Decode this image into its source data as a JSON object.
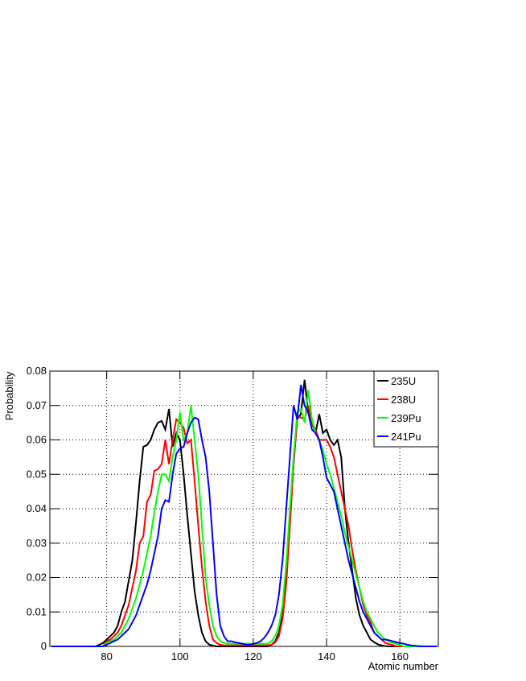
{
  "chart_data": {
    "type": "line",
    "xlabel": "Atomic number",
    "ylabel": "Probability",
    "xlim": [
      64.5,
      170.5
    ],
    "ylim": [
      0,
      0.08
    ],
    "xticks": [
      80,
      100,
      120,
      140,
      160
    ],
    "yticks": [
      0,
      0.01,
      0.02,
      0.03,
      0.04,
      0.05,
      0.06,
      0.07,
      0.08
    ],
    "grid": true,
    "legend": "top-right",
    "x": [
      65,
      66,
      67,
      68,
      69,
      70,
      71,
      72,
      73,
      74,
      75,
      76,
      77,
      78,
      79,
      80,
      81,
      82,
      83,
      84,
      85,
      86,
      87,
      88,
      89,
      90,
      91,
      92,
      93,
      94,
      95,
      96,
      97,
      98,
      99,
      100,
      101,
      102,
      103,
      104,
      105,
      106,
      107,
      108,
      109,
      110,
      111,
      112,
      113,
      114,
      115,
      116,
      117,
      118,
      119,
      120,
      121,
      122,
      123,
      124,
      125,
      126,
      127,
      128,
      129,
      130,
      131,
      132,
      133,
      134,
      135,
      136,
      137,
      138,
      139,
      140,
      141,
      142,
      143,
      144,
      145,
      146,
      147,
      148,
      149,
      150,
      151,
      152,
      153,
      154,
      155,
      156,
      157,
      158,
      159,
      160,
      161,
      162,
      163,
      164,
      165,
      166,
      167,
      168,
      169,
      170
    ],
    "series": [
      {
        "name": "235U",
        "color": "#000000",
        "values": [
          0,
          0,
          0,
          0,
          0,
          0,
          0,
          0,
          0,
          0,
          0,
          0,
          0,
          0.0005,
          0.001,
          0.002,
          0.003,
          0.004,
          0.006,
          0.01,
          0.013,
          0.019,
          0.025,
          0.036,
          0.048,
          0.058,
          0.0585,
          0.06,
          0.063,
          0.065,
          0.0655,
          0.063,
          0.069,
          0.058,
          0.062,
          0.06,
          0.05,
          0.038,
          0.027,
          0.016,
          0.009,
          0.004,
          0.0015,
          0.0005,
          0.0002,
          0,
          0,
          0,
          0,
          0,
          0,
          0,
          0,
          0,
          0,
          0,
          0,
          0,
          0,
          0,
          0.0005,
          0.0015,
          0.004,
          0.009,
          0.02,
          0.036,
          0.053,
          0.066,
          0.0675,
          0.0775,
          0.068,
          0.065,
          0.062,
          0.0675,
          0.062,
          0.063,
          0.06,
          0.0585,
          0.06,
          0.055,
          0.04,
          0.03,
          0.022,
          0.014,
          0.009,
          0.006,
          0.004,
          0.002,
          0.0012,
          0.0006,
          0.0003,
          0.0001,
          0,
          0,
          0,
          0,
          0,
          0,
          0,
          0,
          0,
          0,
          0,
          0,
          0,
          0
        ]
      },
      {
        "name": "238U",
        "color": "#ff0000",
        "values": [
          0,
          0,
          0,
          0,
          0,
          0,
          0,
          0,
          0,
          0,
          0,
          0,
          0,
          0,
          0,
          0.0015,
          0.002,
          0.003,
          0.004,
          0.006,
          0.009,
          0.012,
          0.017,
          0.022,
          0.03,
          0.032,
          0.042,
          0.044,
          0.051,
          0.0515,
          0.053,
          0.06,
          0.053,
          0.06,
          0.066,
          0.065,
          0.0635,
          0.059,
          0.06,
          0.048,
          0.035,
          0.023,
          0.013,
          0.006,
          0.002,
          0.001,
          0.0005,
          0.0003,
          0.0003,
          0.0003,
          0.0003,
          0.0003,
          0.0003,
          0.0003,
          0.0003,
          0.0003,
          0.0003,
          0.0003,
          0.0003,
          0.0003,
          0.0005,
          0.0012,
          0.003,
          0.008,
          0.018,
          0.035,
          0.053,
          0.067,
          0.0665,
          0.066,
          0.07,
          0.065,
          0.063,
          0.06,
          0.06,
          0.06,
          0.058,
          0.055,
          0.05,
          0.045,
          0.04,
          0.035,
          0.028,
          0.022,
          0.017,
          0.012,
          0.009,
          0.007,
          0.004,
          0.003,
          0.002,
          0.001,
          0.0007,
          0.0004,
          0,
          0,
          0,
          0,
          0,
          0,
          0,
          0,
          0,
          0,
          0,
          0
        ]
      },
      {
        "name": "239Pu",
        "color": "#00ff00",
        "values": [
          0,
          0,
          0,
          0,
          0,
          0,
          0,
          0,
          0,
          0,
          0,
          0,
          0,
          0,
          0,
          0.001,
          0.0015,
          0.002,
          0.003,
          0.004,
          0.006,
          0.008,
          0.011,
          0.014,
          0.018,
          0.022,
          0.027,
          0.032,
          0.039,
          0.045,
          0.05,
          0.05,
          0.048,
          0.055,
          0.06,
          0.068,
          0.06,
          0.062,
          0.07,
          0.06,
          0.05,
          0.035,
          0.02,
          0.012,
          0.006,
          0.003,
          0.0015,
          0.001,
          0.0008,
          0.0008,
          0.0008,
          0.0008,
          0.0008,
          0.0008,
          0.0008,
          0.0008,
          0.0008,
          0.0008,
          0.0008,
          0.0008,
          0.0015,
          0.003,
          0.006,
          0.012,
          0.024,
          0.04,
          0.055,
          0.068,
          0.069,
          0.065,
          0.0745,
          0.066,
          0.062,
          0.06,
          0.057,
          0.053,
          0.05,
          0.046,
          0.042,
          0.038,
          0.033,
          0.029,
          0.025,
          0.021,
          0.017,
          0.013,
          0.01,
          0.008,
          0.006,
          0.004,
          0.003,
          0.002,
          0.0015,
          0.001,
          0.0007,
          0.0005,
          0,
          0,
          0,
          0,
          0,
          0,
          0,
          0,
          0,
          0
        ]
      },
      {
        "name": "241Pu",
        "color": "#0000ff",
        "values": [
          0,
          0,
          0,
          0,
          0,
          0,
          0,
          0,
          0,
          0,
          0,
          0,
          0,
          0,
          0,
          0.0005,
          0.001,
          0.0015,
          0.002,
          0.003,
          0.004,
          0.005,
          0.007,
          0.009,
          0.012,
          0.015,
          0.018,
          0.022,
          0.027,
          0.032,
          0.04,
          0.0425,
          0.042,
          0.05,
          0.056,
          0.0575,
          0.058,
          0.062,
          0.065,
          0.0665,
          0.066,
          0.06,
          0.055,
          0.045,
          0.03,
          0.015,
          0.006,
          0.003,
          0.0015,
          0.0015,
          0.0012,
          0.001,
          0.0008,
          0.0005,
          0.0005,
          0.0007,
          0.001,
          0.0015,
          0.0025,
          0.004,
          0.006,
          0.009,
          0.015,
          0.025,
          0.04,
          0.055,
          0.07,
          0.066,
          0.076,
          0.07,
          0.068,
          0.063,
          0.062,
          0.06,
          0.055,
          0.049,
          0.047,
          0.045,
          0.04,
          0.035,
          0.03,
          0.025,
          0.021,
          0.017,
          0.013,
          0.01,
          0.008,
          0.006,
          0.004,
          0.003,
          0.002,
          0.002,
          0.0018,
          0.0015,
          0.0012,
          0.001,
          0.0008,
          0.0005,
          0.0003,
          0.0002,
          0.0001,
          0,
          0,
          0,
          0,
          0
        ]
      }
    ]
  }
}
